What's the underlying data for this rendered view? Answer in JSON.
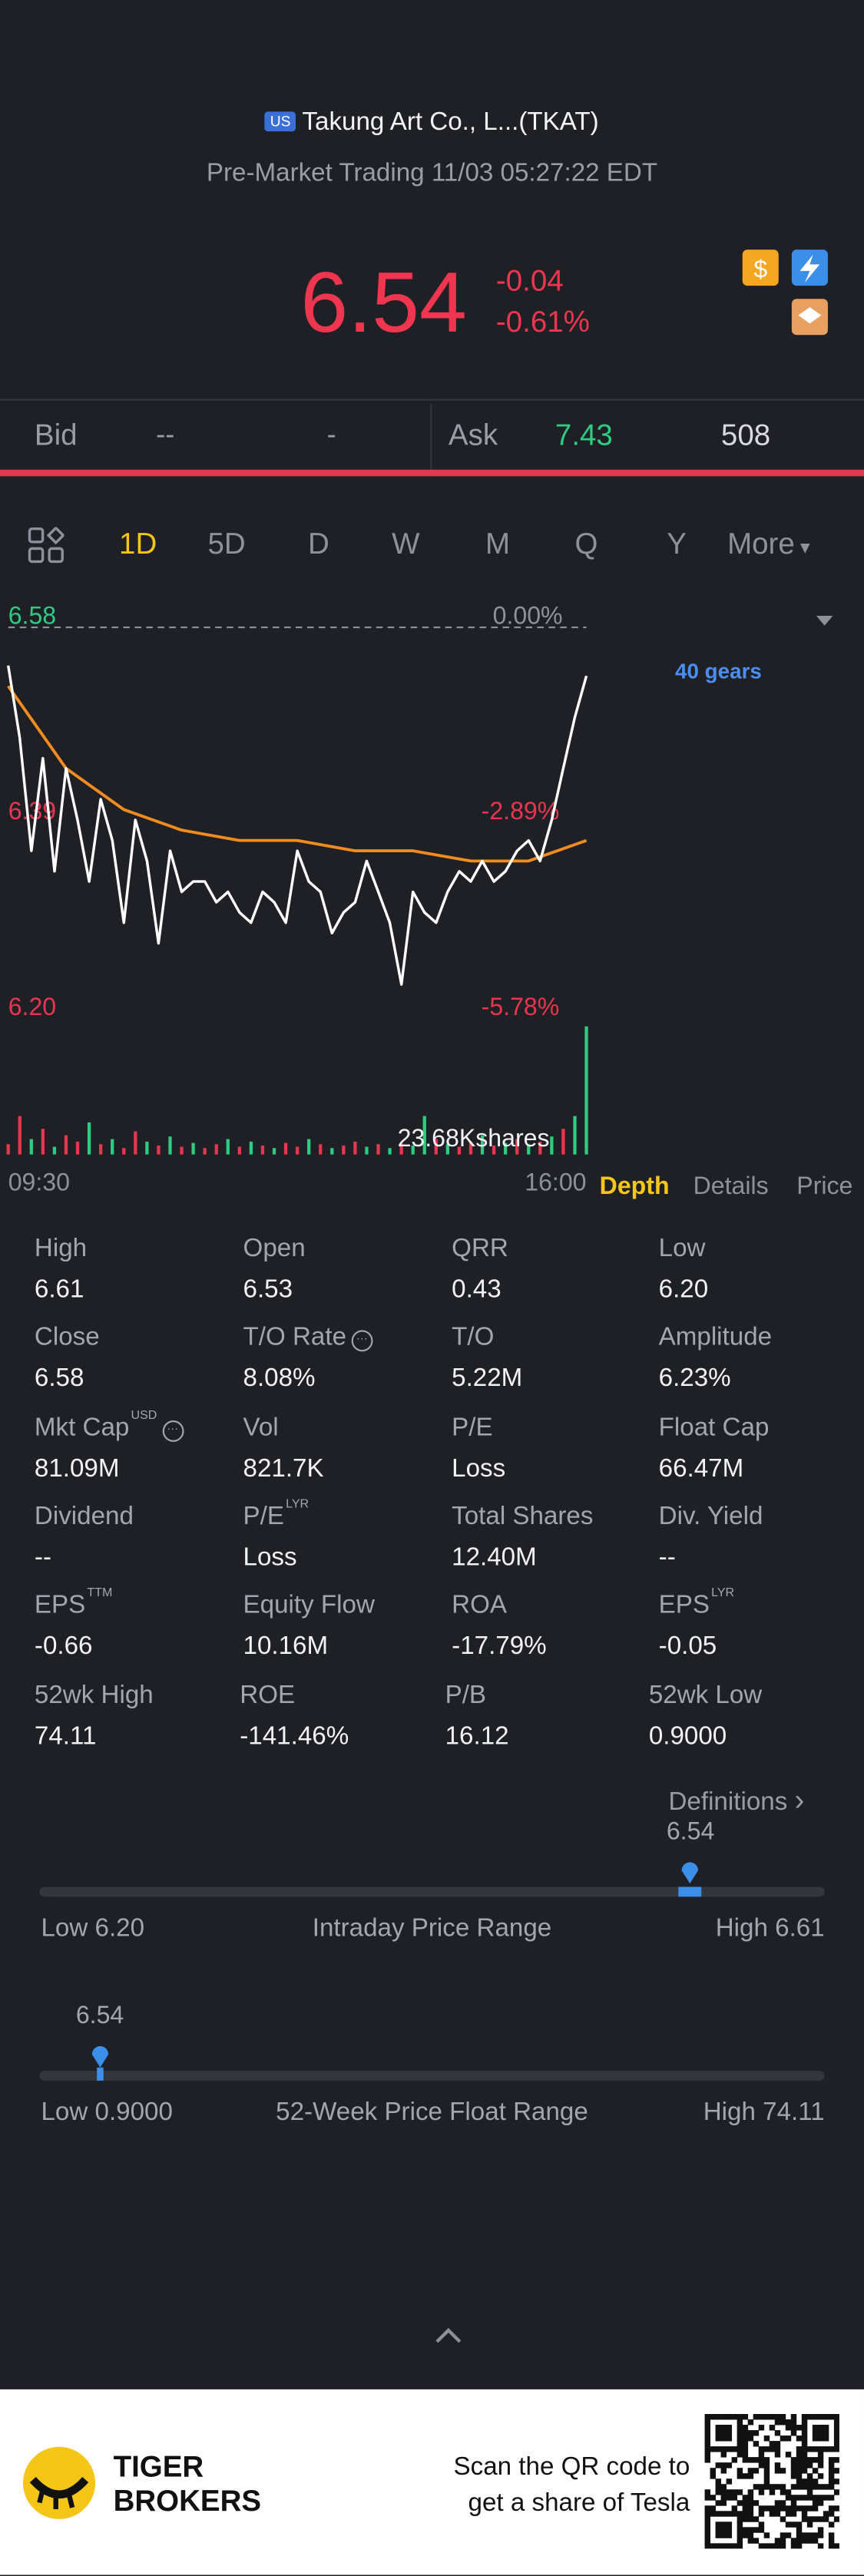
{
  "header": {
    "market_badge": "US",
    "title": "Takung Art Co., L...(TKAT)",
    "status": "Pre-Market Trading 11/03 05:27:22 EDT"
  },
  "quote": {
    "price": "6.54",
    "change": "-0.04",
    "change_percent": "-0.61%"
  },
  "order_book": {
    "bid_label": "Bid",
    "bid_price": "--",
    "bid_size": "-",
    "ask_label": "Ask",
    "ask_price": "7.43",
    "ask_size": "508"
  },
  "period_tabs": [
    "1D",
    "5D",
    "D",
    "W",
    "M",
    "Q",
    "Y",
    "More"
  ],
  "chart": {
    "type": "line",
    "xlim": [
      0,
      50
    ],
    "xticks": [
      {
        "value": 0,
        "label": "09:30"
      },
      {
        "value": 50,
        "label": "16:00"
      }
    ],
    "ylim": [
      6.2,
      6.58
    ],
    "yticks": [
      6.58,
      6.39,
      {
        "value": 6.2,
        "label": "6.20"
      }
    ],
    "y2lim": [
      -5.78,
      0
    ],
    "y2ticks": [
      {
        "value": 0,
        "label": "0.00%"
      },
      {
        "value": -2.89,
        "label": "-2.89%"
      },
      {
        "value": -5.78,
        "label": "-5.78%"
      }
    ],
    "annotation": "40 gears",
    "volume_label": "23.68Kshares",
    "series": [
      {
        "color": "#ffffff",
        "values": [
          6.53,
          6.46,
          6.35,
          6.44,
          6.33,
          6.43,
          6.38,
          6.32,
          6.4,
          6.36,
          6.28,
          6.38,
          6.34,
          6.26,
          6.35,
          6.31,
          6.32,
          6.32,
          6.3,
          6.31,
          6.29,
          6.28,
          6.31,
          6.3,
          6.28,
          6.35,
          6.32,
          6.31,
          6.27,
          6.29,
          6.3,
          6.34,
          6.31,
          6.28,
          6.22,
          6.31,
          6.29,
          6.28,
          6.31,
          6.33,
          6.32,
          6.34,
          6.32,
          6.33,
          6.35,
          6.36,
          6.34,
          6.38,
          6.43,
          6.48,
          6.52
        ]
      },
      {
        "color": "#f28c1e",
        "x": [
          0,
          5,
          10,
          15,
          20,
          25,
          30,
          35,
          40,
          45,
          50
        ],
        "values": [
          6.51,
          6.43,
          6.39,
          6.37,
          6.36,
          6.36,
          6.35,
          6.35,
          6.34,
          6.34,
          6.36
        ]
      }
    ],
    "volume": {
      "ylim": [
        0,
        100
      ],
      "values": [
        8,
        30,
        12,
        20,
        6,
        15,
        10,
        25,
        8,
        12,
        5,
        18,
        10,
        7,
        14,
        6,
        9,
        5,
        8,
        12,
        6,
        10,
        7,
        5,
        9,
        6,
        12,
        8,
        5,
        7,
        10,
        6,
        8,
        5,
        9,
        7,
        30,
        12,
        8,
        6,
        10,
        15,
        7,
        9,
        12,
        8,
        10,
        14,
        20,
        30,
        100
      ],
      "colors": [
        "#e8364f",
        "#e8364f",
        "#2ecc80",
        "#e8364f",
        "#2ecc80",
        "#e8364f",
        "#e8364f",
        "#2ecc80",
        "#e8364f",
        "#2ecc80",
        "#e8364f",
        "#e8364f",
        "#2ecc80",
        "#e8364f",
        "#2ecc80",
        "#e8364f",
        "#2ecc80",
        "#e8364f",
        "#e8364f",
        "#2ecc80",
        "#e8364f",
        "#2ecc80",
        "#e8364f",
        "#2ecc80",
        "#e8364f",
        "#e8364f",
        "#2ecc80",
        "#e8364f",
        "#2ecc80",
        "#e8364f",
        "#e8364f",
        "#2ecc80",
        "#e8364f",
        "#2ecc80",
        "#e8364f",
        "#2ecc80",
        "#2ecc80",
        "#e8364f",
        "#2ecc80",
        "#e8364f",
        "#e8364f",
        "#2ecc80",
        "#e8364f",
        "#2ecc80",
        "#e8364f",
        "#2ecc80",
        "#e8364f",
        "#2ecc80",
        "#e8364f",
        "#2ecc80",
        "#2ecc80"
      ]
    }
  },
  "detail_tabs": [
    "Depth",
    "Details",
    "Price"
  ],
  "stats": [
    {
      "label": "High",
      "value": "6.61"
    },
    {
      "label": "Open",
      "value": "6.53"
    },
    {
      "label": "QRR",
      "value": "0.43"
    },
    {
      "label": "Low",
      "value": "6.20"
    },
    {
      "label": "Close",
      "value": "6.58"
    },
    {
      "label": "T/O Rate",
      "value": "8.08%"
    },
    {
      "label": "T/O",
      "value": "5.22M"
    },
    {
      "label": "Amplitude",
      "value": "6.23%"
    },
    {
      "label": "Mkt Cap",
      "sup": "USD",
      "value": "81.09M"
    },
    {
      "label": "Vol",
      "value": "821.7K"
    },
    {
      "label": "P/E",
      "value": "Loss"
    },
    {
      "label": "Float Cap",
      "value": "66.47M"
    },
    {
      "label": "Dividend",
      "value": "--"
    },
    {
      "label": "P/E",
      "sup": "LYR",
      "value": "Loss"
    },
    {
      "label": "Total Shares",
      "value": "12.40M"
    },
    {
      "label": "Div. Yield",
      "value": "--"
    },
    {
      "label": "EPS",
      "sup": "TTM",
      "value": "-0.66"
    },
    {
      "label": "Equity Flow",
      "value": "10.16M"
    },
    {
      "label": "ROA",
      "value": "-17.79%"
    },
    {
      "label": "EPS",
      "sup": "LYR",
      "value": "-0.05"
    },
    {
      "label": "52wk High",
      "value": "74.11"
    },
    {
      "label": "ROE",
      "value": "-141.46%"
    },
    {
      "label": "P/B",
      "value": "16.12"
    },
    {
      "label": "52wk Low",
      "value": "0.9000"
    }
  ],
  "definitions": "Definitions",
  "ranges": [
    {
      "current": "6.54",
      "low_label": "Low",
      "low": "6.20",
      "title": "Intraday Price Range",
      "high_label": "High",
      "high": "6.61"
    },
    {
      "current": "6.54",
      "low_label": "Low",
      "low": "0.9000",
      "title": "52-Week Price Float Range",
      "high_label": "High",
      "high": "74.11"
    }
  ],
  "footer": {
    "brand": [
      "TIGER",
      "BROKERS"
    ],
    "promo": [
      "Scan the QR code to",
      "get a share of Tesla"
    ]
  }
}
